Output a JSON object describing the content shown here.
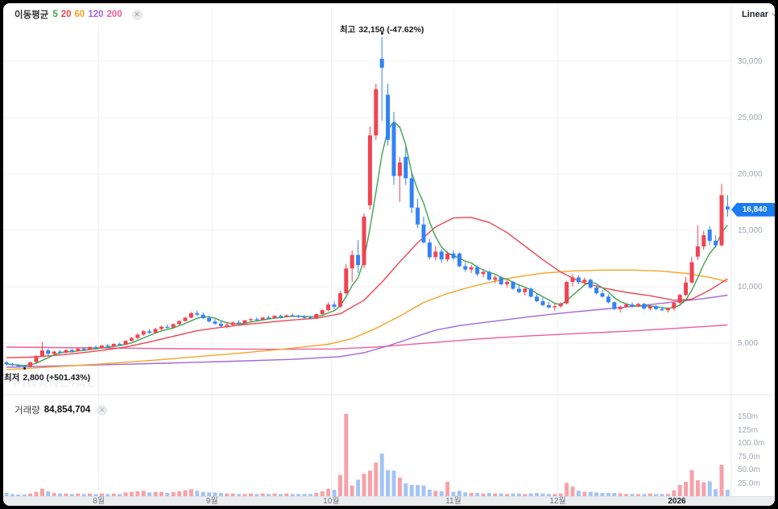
{
  "legend": {
    "title": "이동평균",
    "periods": [
      {
        "label": "5",
        "color": "#3ea44e"
      },
      {
        "label": "20",
        "color": "#ef4452"
      },
      {
        "label": "60",
        "color": "#f5a325"
      },
      {
        "label": "120",
        "color": "#a268d8"
      },
      {
        "label": "200",
        "color": "#ef5d9a"
      }
    ],
    "close_icon": "×"
  },
  "toolbar": {
    "scale_label": "Linear"
  },
  "annotations": {
    "high": {
      "prefix": "최고",
      "value": "32,150",
      "change": "(-47.62%)",
      "candle_index": 63
    },
    "low": {
      "prefix": "최저",
      "value": "2,800",
      "change": "(+501.43%)",
      "candle_index": 3
    }
  },
  "volume_header": {
    "title": "거래량",
    "value": "84,854,704",
    "close_icon": "×"
  },
  "watermark": "FINANCIAL",
  "price_axis": {
    "current_label": "16,840",
    "current_value": 16840,
    "current_color": "#1a7cf0",
    "ticks": [
      {
        "v": 30000,
        "label": "30,000"
      },
      {
        "v": 25000,
        "label": "25,000"
      },
      {
        "v": 20000,
        "label": "20,000"
      },
      {
        "v": 15000,
        "label": "15,000"
      },
      {
        "v": 10000,
        "label": "10,000"
      },
      {
        "v": 5000,
        "label": "5,000"
      }
    ]
  },
  "volume_axis": {
    "ticks": [
      {
        "v": 150,
        "label": "150m"
      },
      {
        "v": 125,
        "label": "125m"
      },
      {
        "v": 100,
        "label": "100.0m"
      },
      {
        "v": 75,
        "label": "75.0m"
      },
      {
        "v": 50,
        "label": "50.0m"
      },
      {
        "v": 25,
        "label": "25.0m"
      }
    ]
  },
  "x_axis": {
    "labels": [
      {
        "text": "8월",
        "i": 15.5,
        "bold": false
      },
      {
        "text": "9월",
        "i": 34.5,
        "bold": false
      },
      {
        "text": "10월",
        "i": 54.5,
        "bold": false
      },
      {
        "text": "11월",
        "i": 75,
        "bold": false
      },
      {
        "text": "12월",
        "i": 92.5,
        "bold": false
      },
      {
        "text": "2026",
        "i": 112.5,
        "bold": true
      }
    ]
  },
  "chart_data": {
    "type": "candlestick+volume",
    "title": "",
    "x_categories_months": [
      "8월",
      "9월",
      "10월",
      "11월",
      "12월",
      "2026"
    ],
    "price_ylim": [
      500,
      35000
    ],
    "volume_ylim_m": [
      0,
      165
    ],
    "grid": true,
    "legend_position": "top-left",
    "up_color": "#f04452",
    "down_color": "#3182f6",
    "vol_up_color": "#f6a2a8",
    "vol_down_color": "#a3c4f5",
    "high_point": {
      "index": 63,
      "price": 32150
    },
    "low_point": {
      "index": 3,
      "price": 2800
    },
    "candles_ohlc": [
      [
        3300,
        3400,
        3000,
        3150
      ],
      [
        3150,
        3250,
        2950,
        3050
      ],
      [
        3050,
        3150,
        2870,
        2950
      ],
      [
        2950,
        3020,
        2800,
        2900
      ],
      [
        2900,
        3350,
        2870,
        3300
      ],
      [
        3300,
        3950,
        3250,
        3850
      ],
      [
        3850,
        5100,
        3800,
        4350
      ],
      [
        4350,
        4500,
        3900,
        4050
      ],
      [
        4050,
        4300,
        3950,
        4250
      ],
      [
        4250,
        4400,
        4050,
        4150
      ],
      [
        4150,
        4450,
        4100,
        4380
      ],
      [
        4380,
        4500,
        4180,
        4280
      ],
      [
        4280,
        4550,
        4230,
        4500
      ],
      [
        4500,
        4650,
        4330,
        4420
      ],
      [
        4420,
        4700,
        4380,
        4650
      ],
      [
        4650,
        4780,
        4480,
        4560
      ],
      [
        4560,
        4820,
        4510,
        4780
      ],
      [
        4780,
        4920,
        4620,
        4700
      ],
      [
        4700,
        4980,
        4660,
        4930
      ],
      [
        4930,
        5050,
        4760,
        4840
      ],
      [
        4840,
        5250,
        4810,
        5200
      ],
      [
        5200,
        5550,
        5150,
        5450
      ],
      [
        5450,
        5850,
        5350,
        5750
      ],
      [
        5750,
        6150,
        5650,
        6050
      ],
      [
        6050,
        6250,
        5820,
        5920
      ],
      [
        5920,
        6350,
        5870,
        6250
      ],
      [
        6250,
        6550,
        6150,
        6450
      ],
      [
        6450,
        6650,
        6280,
        6380
      ],
      [
        6380,
        6750,
        6330,
        6680
      ],
      [
        6680,
        7050,
        6620,
        6950
      ],
      [
        6950,
        7350,
        6900,
        7250
      ],
      [
        7250,
        7750,
        7200,
        7650
      ],
      [
        7650,
        7900,
        7420,
        7520
      ],
      [
        7520,
        7720,
        7120,
        7220
      ],
      [
        7220,
        7420,
        6820,
        6920
      ],
      [
        6920,
        7120,
        6620,
        6720
      ],
      [
        6720,
        6920,
        6420,
        6520
      ],
      [
        6520,
        6820,
        6320,
        6620
      ],
      [
        6620,
        6920,
        6520,
        6820
      ],
      [
        6820,
        7020,
        6670,
        6770
      ],
      [
        6770,
        7070,
        6720,
        7020
      ],
      [
        7020,
        7220,
        6920,
        7120
      ],
      [
        7120,
        7270,
        6970,
        7070
      ],
      [
        7070,
        7320,
        7020,
        7270
      ],
      [
        7270,
        7420,
        7120,
        7220
      ],
      [
        7220,
        7470,
        7170,
        7420
      ],
      [
        7420,
        7520,
        7220,
        7320
      ],
      [
        7320,
        7520,
        7270,
        7470
      ],
      [
        7470,
        7620,
        7320,
        7420
      ],
      [
        7420,
        7520,
        7220,
        7320
      ],
      [
        7320,
        7470,
        7170,
        7270
      ],
      [
        7270,
        7420,
        7120,
        7220
      ],
      [
        7220,
        7620,
        7170,
        7570
      ],
      [
        7570,
        8020,
        7520,
        7920
      ],
      [
        7920,
        8620,
        7820,
        8420
      ],
      [
        8420,
        8720,
        8020,
        8220
      ],
      [
        8220,
        9620,
        8120,
        9420
      ],
      [
        9420,
        12020,
        9320,
        11620
      ],
      [
        11620,
        13220,
        10420,
        12820
      ],
      [
        12820,
        14120,
        11220,
        11920
      ],
      [
        11920,
        16520,
        11620,
        16220
      ],
      [
        17220,
        24220,
        16820,
        23420
      ],
      [
        23420,
        28020,
        23020,
        27520
      ],
      [
        30220,
        32150,
        24720,
        29420
      ],
      [
        27020,
        28020,
        22520,
        23020
      ],
      [
        24520,
        25520,
        19020,
        19820
      ],
      [
        19820,
        21520,
        17520,
        21020
      ],
      [
        21520,
        22420,
        19020,
        19620
      ],
      [
        19620,
        20020,
        16520,
        17020
      ],
      [
        17020,
        17820,
        15220,
        15520
      ],
      [
        15520,
        16220,
        13820,
        13920
      ],
      [
        13920,
        14220,
        12420,
        12620
      ],
      [
        12620,
        13620,
        12320,
        13120
      ],
      [
        13120,
        13320,
        12120,
        12420
      ],
      [
        12420,
        13140,
        12220,
        12940
      ],
      [
        12940,
        13240,
        12340,
        12540
      ],
      [
        12940,
        13040,
        11720,
        11820
      ],
      [
        11820,
        12120,
        11320,
        11520
      ],
      [
        11520,
        11920,
        11220,
        11720
      ],
      [
        11720,
        11920,
        10920,
        11120
      ],
      [
        11120,
        11520,
        10820,
        11320
      ],
      [
        11320,
        11420,
        10520,
        10620
      ],
      [
        10620,
        11020,
        10320,
        10820
      ],
      [
        10820,
        10920,
        10120,
        10220
      ],
      [
        10220,
        10620,
        9920,
        10420
      ],
      [
        10420,
        10520,
        9720,
        9820
      ],
      [
        9820,
        10120,
        9420,
        9520
      ],
      [
        9520,
        9920,
        9220,
        9820
      ],
      [
        9820,
        9920,
        9020,
        9120
      ],
      [
        9120,
        9420,
        8620,
        8720
      ],
      [
        8720,
        9020,
        8270,
        8370
      ],
      [
        8370,
        8670,
        8070,
        8170
      ],
      [
        8170,
        8470,
        7870,
        8270
      ],
      [
        8270,
        8620,
        8120,
        8520
      ],
      [
        8520,
        10520,
        8420,
        10420
      ],
      [
        10420,
        11120,
        10020,
        10820
      ],
      [
        10820,
        11020,
        10220,
        10420
      ],
      [
        10420,
        10820,
        10120,
        10620
      ],
      [
        10620,
        10720,
        9820,
        9920
      ],
      [
        9920,
        10120,
        9320,
        9420
      ],
      [
        9420,
        9720,
        9020,
        9120
      ],
      [
        9120,
        9320,
        8520,
        8620
      ],
      [
        8620,
        8720,
        7920,
        8020
      ],
      [
        8020,
        8320,
        7720,
        8220
      ],
      [
        8220,
        8520,
        8120,
        8420
      ],
      [
        8420,
        8620,
        8170,
        8270
      ],
      [
        8270,
        8570,
        8170,
        8470
      ],
      [
        8470,
        8570,
        7970,
        8070
      ],
      [
        8070,
        8370,
        7870,
        8270
      ],
      [
        8270,
        8370,
        7920,
        8020
      ],
      [
        8020,
        8220,
        7820,
        7920
      ],
      [
        7920,
        8120,
        7720,
        8070
      ],
      [
        8070,
        8670,
        7870,
        8570
      ],
      [
        8570,
        9370,
        8470,
        9270
      ],
      [
        9270,
        10870,
        9170,
        10370
      ],
      [
        10370,
        12670,
        10270,
        12170
      ],
      [
        12670,
        15470,
        12370,
        13570
      ],
      [
        13570,
        14970,
        13270,
        14570
      ],
      [
        15070,
        15370,
        13670,
        14070
      ],
      [
        14070,
        14570,
        13470,
        13670
      ],
      [
        13670,
        19120,
        13570,
        18120
      ],
      [
        17120,
        18120,
        16220,
        16840
      ]
    ],
    "volumes_m": [
      6,
      4,
      3,
      3,
      5,
      8,
      14,
      9,
      6,
      5,
      5,
      4,
      5,
      4,
      5,
      4,
      5,
      4,
      5,
      4,
      7,
      8,
      9,
      10,
      7,
      8,
      8,
      6,
      8,
      9,
      11,
      13,
      10,
      8,
      7,
      7,
      6,
      5,
      5,
      4,
      4,
      5,
      4,
      5,
      4,
      5,
      4,
      5,
      4,
      4,
      4,
      4,
      6,
      9,
      14,
      12,
      40,
      155,
      20,
      31,
      42,
      48,
      63,
      80,
      49,
      48,
      35,
      24,
      21,
      21,
      20,
      12,
      10,
      9,
      27,
      8,
      10,
      7,
      6,
      6,
      5,
      6,
      5,
      5,
      4,
      5,
      5,
      4,
      5,
      6,
      5,
      4,
      4,
      5,
      25,
      18,
      10,
      8,
      8,
      7,
      6,
      6,
      6,
      5,
      4,
      4,
      4,
      4,
      5,
      4,
      4,
      4,
      11,
      21,
      27,
      49,
      30,
      26,
      28,
      13,
      59,
      12
    ],
    "ma_lines": {
      "ma5": {
        "period": 5,
        "color": "#3ea44e",
        "source": "sma_of_closes"
      },
      "ma20": {
        "period": 20,
        "color": "#ef4452",
        "points": [
          [
            0,
            3700
          ],
          [
            4,
            3750
          ],
          [
            8,
            3900
          ],
          [
            12,
            4100
          ],
          [
            16,
            4350
          ],
          [
            20,
            4650
          ],
          [
            24,
            5100
          ],
          [
            28,
            5600
          ],
          [
            32,
            6100
          ],
          [
            36,
            6400
          ],
          [
            40,
            6650
          ],
          [
            44,
            6850
          ],
          [
            48,
            7050
          ],
          [
            52,
            7200
          ],
          [
            56,
            7600
          ],
          [
            60,
            8800
          ],
          [
            63,
            10400
          ],
          [
            66,
            12200
          ],
          [
            69,
            13900
          ],
          [
            72,
            15300
          ],
          [
            75,
            16100
          ],
          [
            78,
            16150
          ],
          [
            81,
            15700
          ],
          [
            84,
            14800
          ],
          [
            87,
            13600
          ],
          [
            90,
            12400
          ],
          [
            93,
            11300
          ],
          [
            96,
            10500
          ],
          [
            100,
            9900
          ],
          [
            104,
            9500
          ],
          [
            108,
            9200
          ],
          [
            112,
            8800
          ],
          [
            115,
            8900
          ],
          [
            118,
            9700
          ],
          [
            121,
            10700
          ]
        ]
      },
      "ma60": {
        "period": 60,
        "color": "#f5a325",
        "points": [
          [
            0,
            2650
          ],
          [
            8,
            2900
          ],
          [
            16,
            3150
          ],
          [
            24,
            3450
          ],
          [
            32,
            3800
          ],
          [
            40,
            4150
          ],
          [
            48,
            4550
          ],
          [
            54,
            4900
          ],
          [
            58,
            5400
          ],
          [
            62,
            6300
          ],
          [
            66,
            7400
          ],
          [
            70,
            8600
          ],
          [
            74,
            9400
          ],
          [
            78,
            10000
          ],
          [
            82,
            10500
          ],
          [
            86,
            10900
          ],
          [
            90,
            11200
          ],
          [
            95,
            11400
          ],
          [
            100,
            11480
          ],
          [
            105,
            11480
          ],
          [
            110,
            11380
          ],
          [
            114,
            11180
          ],
          [
            118,
            10830
          ],
          [
            121,
            10450
          ]
        ]
      },
      "ma120": {
        "period": 120,
        "color": "#a268d8",
        "points": [
          [
            0,
            2860
          ],
          [
            12,
            3020
          ],
          [
            24,
            3180
          ],
          [
            36,
            3360
          ],
          [
            48,
            3560
          ],
          [
            56,
            3800
          ],
          [
            60,
            4150
          ],
          [
            64,
            4750
          ],
          [
            68,
            5450
          ],
          [
            72,
            6150
          ],
          [
            76,
            6550
          ],
          [
            82,
            6950
          ],
          [
            88,
            7350
          ],
          [
            94,
            7700
          ],
          [
            100,
            8000
          ],
          [
            106,
            8300
          ],
          [
            112,
            8650
          ],
          [
            117,
            8950
          ],
          [
            121,
            9250
          ]
        ]
      },
      "ma200": {
        "period": 200,
        "color": "#ef5d9a",
        "points": [
          [
            0,
            4640
          ],
          [
            15,
            4570
          ],
          [
            30,
            4500
          ],
          [
            45,
            4450
          ],
          [
            55,
            4480
          ],
          [
            62,
            4650
          ],
          [
            68,
            4900
          ],
          [
            74,
            5150
          ],
          [
            80,
            5400
          ],
          [
            88,
            5650
          ],
          [
            96,
            5850
          ],
          [
            104,
            6050
          ],
          [
            112,
            6300
          ],
          [
            121,
            6600
          ]
        ]
      }
    }
  }
}
